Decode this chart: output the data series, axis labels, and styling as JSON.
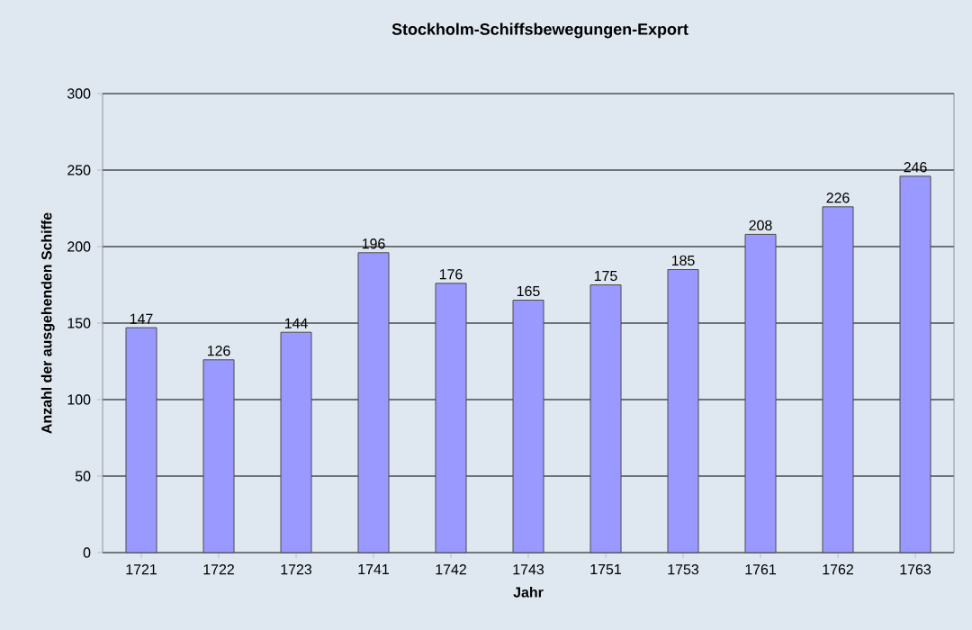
{
  "chart_data": {
    "type": "bar",
    "title": "Stockholm-Schiffsbewegungen-Export",
    "xlabel": "Jahr",
    "ylabel": "Anzahl der ausgehenden Schiffe",
    "categories": [
      "1721",
      "1722",
      "1723",
      "1741",
      "1742",
      "1743",
      "1751",
      "1753",
      "1761",
      "1762",
      "1763"
    ],
    "values": [
      147,
      126,
      144,
      196,
      176,
      165,
      175,
      185,
      208,
      226,
      246
    ],
    "color": "#9999ff",
    "ylim": [
      0,
      300
    ],
    "yticks": [
      0,
      50,
      100,
      150,
      200,
      250,
      300
    ],
    "grid": "y",
    "data_labels": true
  }
}
